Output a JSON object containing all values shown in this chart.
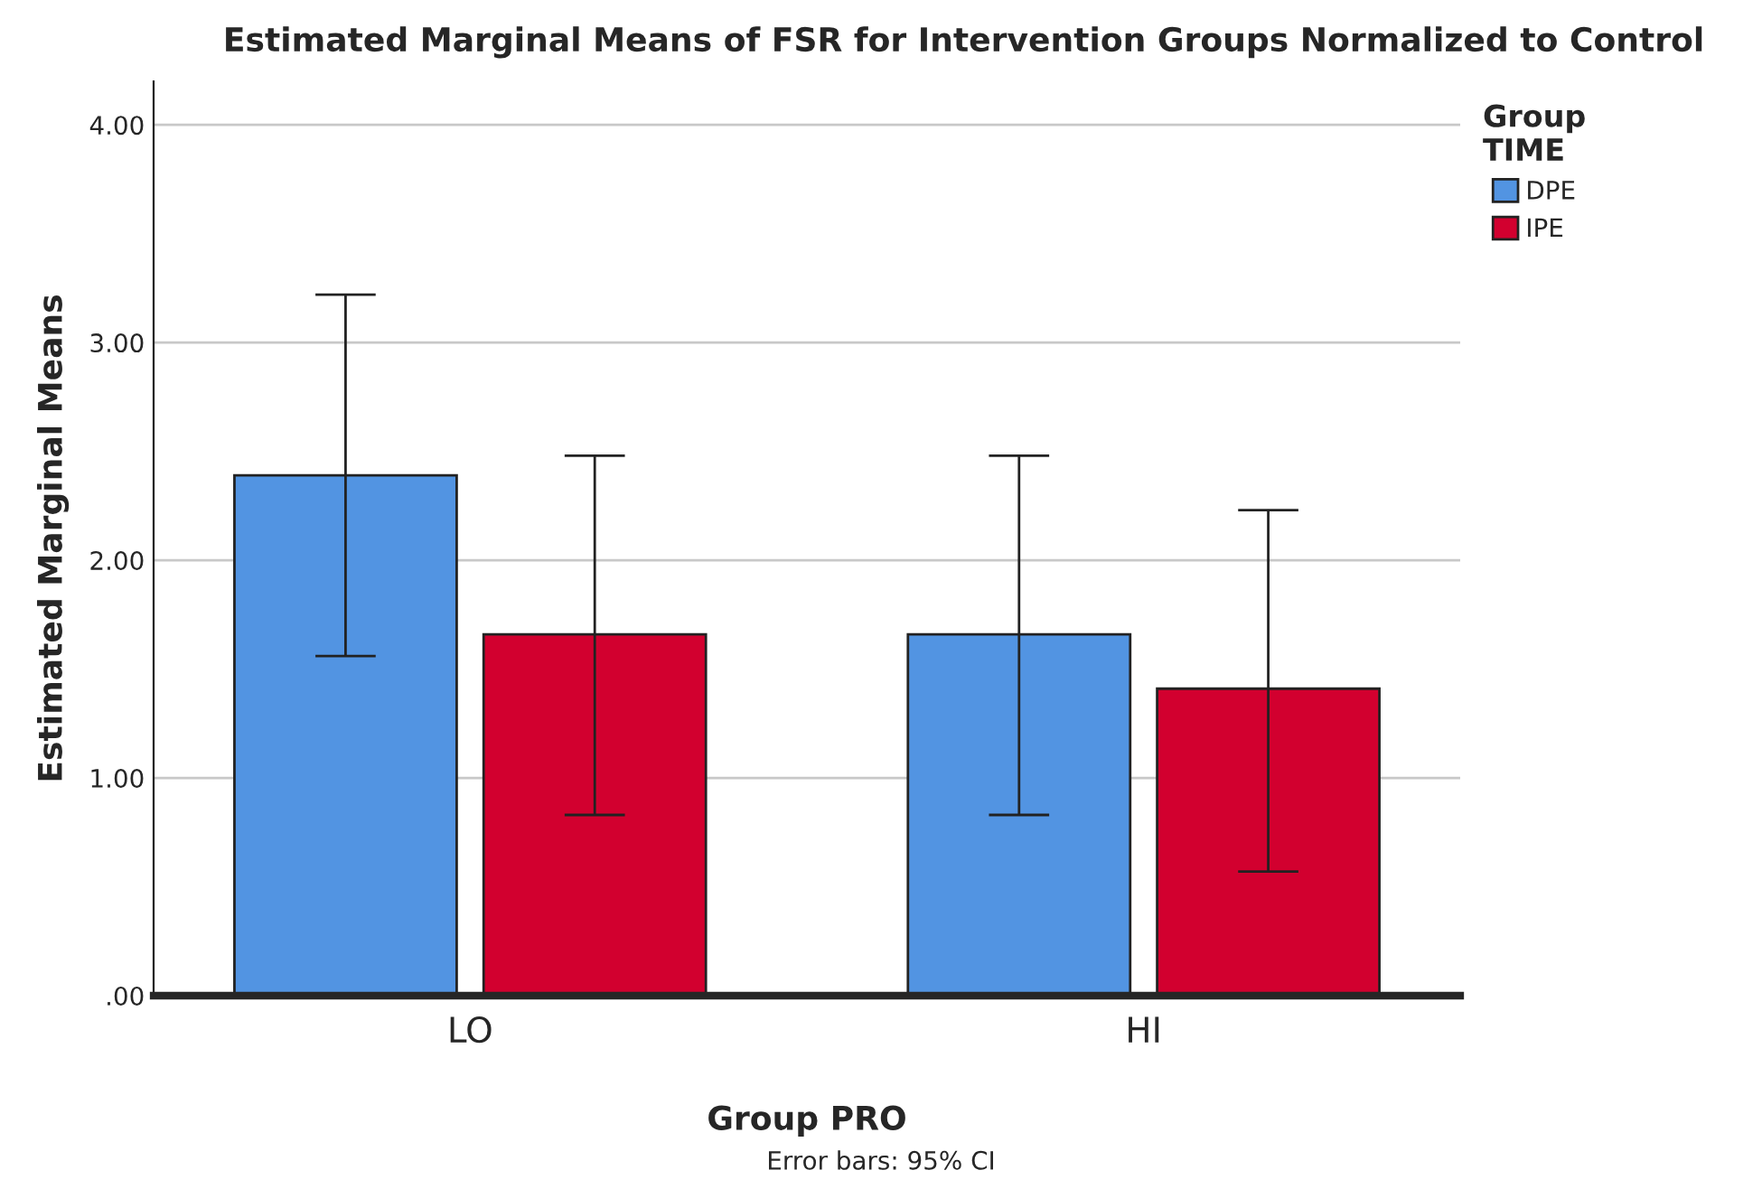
{
  "chart_data": {
    "type": "bar",
    "title": "Estimated Marginal Means of FSR for Intervention Groups Normalized to Control",
    "xlabel": "Group PRO",
    "ylabel": "Estimated Marginal Means",
    "legend_title": "Group\nTIME",
    "categories": [
      "LO",
      "HI"
    ],
    "series": [
      {
        "name": "DPE",
        "color": "#5294e2",
        "values": [
          2.39,
          1.66
        ],
        "errors": [
          [
            1.56,
            3.22
          ],
          [
            0.83,
            2.48
          ]
        ]
      },
      {
        "name": "IPE",
        "color": "#d2002f",
        "values": [
          1.66,
          1.41
        ],
        "errors": [
          [
            0.83,
            2.48
          ],
          [
            0.57,
            2.23
          ]
        ]
      }
    ],
    "ylim": [
      0,
      4.2
    ],
    "yticks": [
      {
        "value": 0,
        "label": ".00"
      },
      {
        "value": 1,
        "label": "1.00"
      },
      {
        "value": 2,
        "label": "2.00"
      },
      {
        "value": 3,
        "label": "3.00"
      },
      {
        "value": 4,
        "label": "4.00"
      }
    ],
    "grid": "y",
    "legend": "top right",
    "annotations": [
      "Error bars: 95% CI"
    ]
  }
}
